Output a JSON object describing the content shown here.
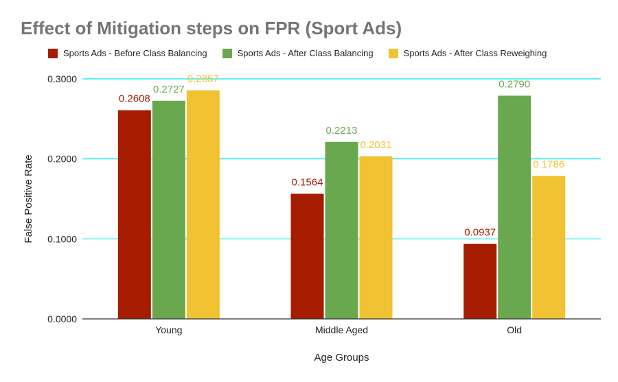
{
  "chart_data": {
    "type": "bar",
    "title": "Effect of Mitigation steps on FPR (Sport Ads)",
    "xlabel": "Age Groups",
    "ylabel": "False Positive Rate",
    "categories": [
      "Young",
      "Middle Aged",
      "Old"
    ],
    "series": [
      {
        "name": "Sports Ads - Before Class Balancing",
        "values": [
          0.2608,
          0.1564,
          0.0937
        ],
        "color": "#a61c00",
        "labels": [
          "0.2608",
          "0.1564",
          "0.0937"
        ]
      },
      {
        "name": "Sports Ads - After Class Balancing",
        "values": [
          0.2727,
          0.2213,
          0.279
        ],
        "color": "#6aa84f",
        "labels": [
          "0.2727",
          "0.2213",
          "0.2790"
        ]
      },
      {
        "name": "Sports Ads - After Class Reweighing",
        "values": [
          0.2857,
          0.2031,
          0.1786
        ],
        "color": "#f1c232",
        "labels": [
          "0.2857",
          "0.2031",
          "0.1786"
        ]
      }
    ],
    "ylim": [
      0,
      0.3
    ],
    "yticks": [
      "0.0000",
      "0.1000",
      "0.2000",
      "0.3000"
    ],
    "ytick_values": [
      0,
      0.1,
      0.2,
      0.3
    ],
    "grid": true,
    "grid_color": "#00e5ee",
    "legend_position": "top",
    "title_color": "#757575"
  }
}
